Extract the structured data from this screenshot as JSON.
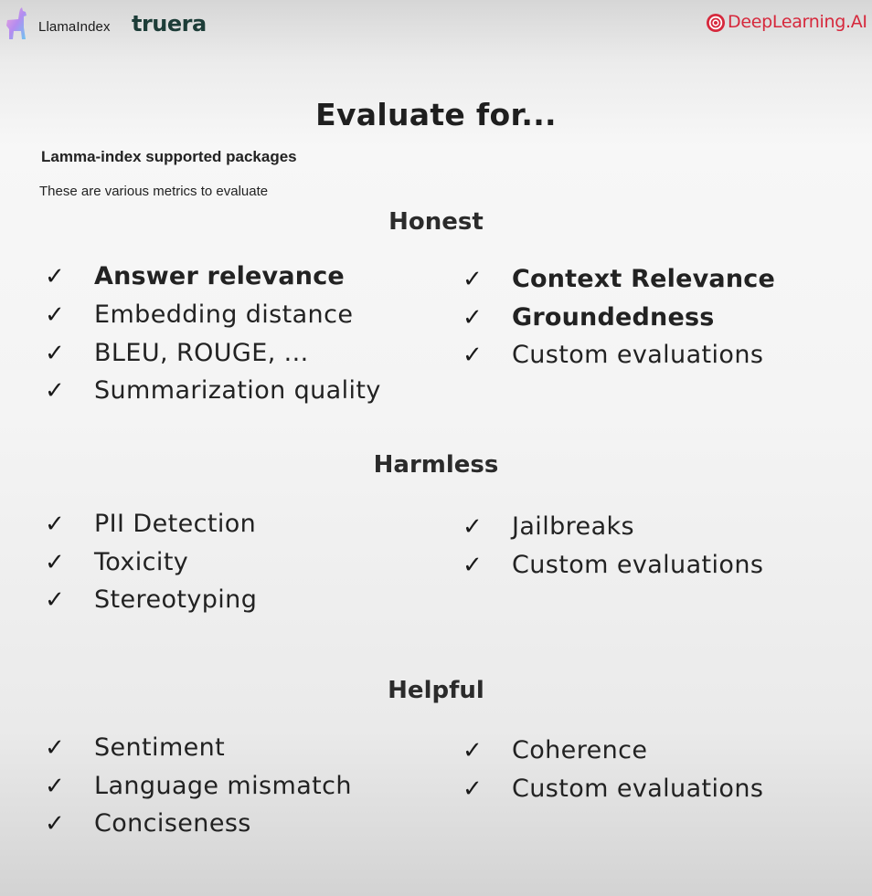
{
  "header": {
    "llama_label": "LlamaIndex",
    "truera_label": "truera",
    "deeplearning_label": "DeepLearning.AI",
    "deeplearning_color": "#d6283c",
    "truera_color": "#1d3d38"
  },
  "slide": {
    "title": "Evaluate for...",
    "subtitle": "Lamma-index supported packages",
    "description": "These are various metrics to evaluate"
  },
  "check_glyph": "✓",
  "sections": {
    "honest": {
      "heading": "Honest",
      "left": [
        {
          "label": "Answer relevance",
          "bold": true
        },
        {
          "label": "Embedding distance",
          "bold": false
        },
        {
          "label": "BLEU, ROUGE, ...",
          "bold": false
        },
        {
          "label": "Summarization quality",
          "bold": false
        }
      ],
      "right": [
        {
          "label": "Context Relevance",
          "bold": true
        },
        {
          "label": "Groundedness",
          "bold": true
        },
        {
          "label": "Custom evaluations",
          "bold": false
        }
      ]
    },
    "harmless": {
      "heading": "Harmless",
      "left": [
        {
          "label": "PII Detection",
          "bold": false
        },
        {
          "label": "Toxicity",
          "bold": false
        },
        {
          "label": "Stereotyping",
          "bold": false
        }
      ],
      "right": [
        {
          "label": "Jailbreaks",
          "bold": false
        },
        {
          "label": "Custom evaluations",
          "bold": false
        }
      ]
    },
    "helpful": {
      "heading": "Helpful",
      "left": [
        {
          "label": "Sentiment",
          "bold": false
        },
        {
          "label": "Language mismatch",
          "bold": false
        },
        {
          "label": "Conciseness",
          "bold": false
        }
      ],
      "right": [
        {
          "label": "Coherence",
          "bold": false
        },
        {
          "label": "Custom evaluations",
          "bold": false
        }
      ]
    }
  }
}
